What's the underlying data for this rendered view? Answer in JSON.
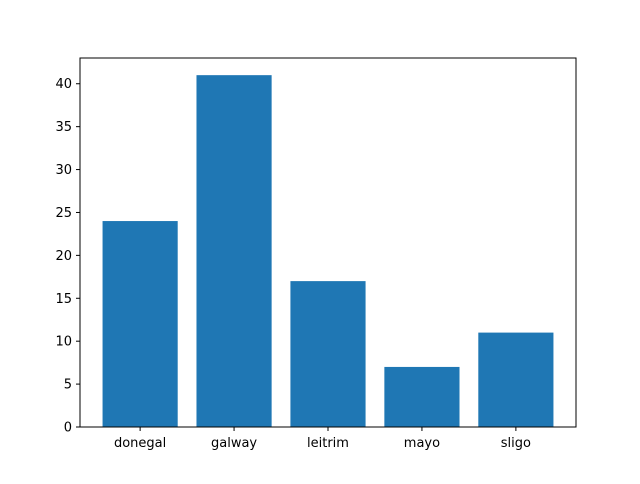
{
  "chart_data": {
    "type": "bar",
    "title": "",
    "xlabel": "",
    "ylabel": "",
    "categories": [
      "donegal",
      "galway",
      "leitrim",
      "mayo",
      "sligo"
    ],
    "values": [
      24,
      41,
      17,
      7,
      11
    ],
    "ylim": [
      0,
      43
    ],
    "yticks": [
      0,
      5,
      10,
      15,
      20,
      25,
      30,
      35,
      40
    ],
    "grid": false,
    "legend": "none",
    "bar_color": "#1f77b4"
  }
}
